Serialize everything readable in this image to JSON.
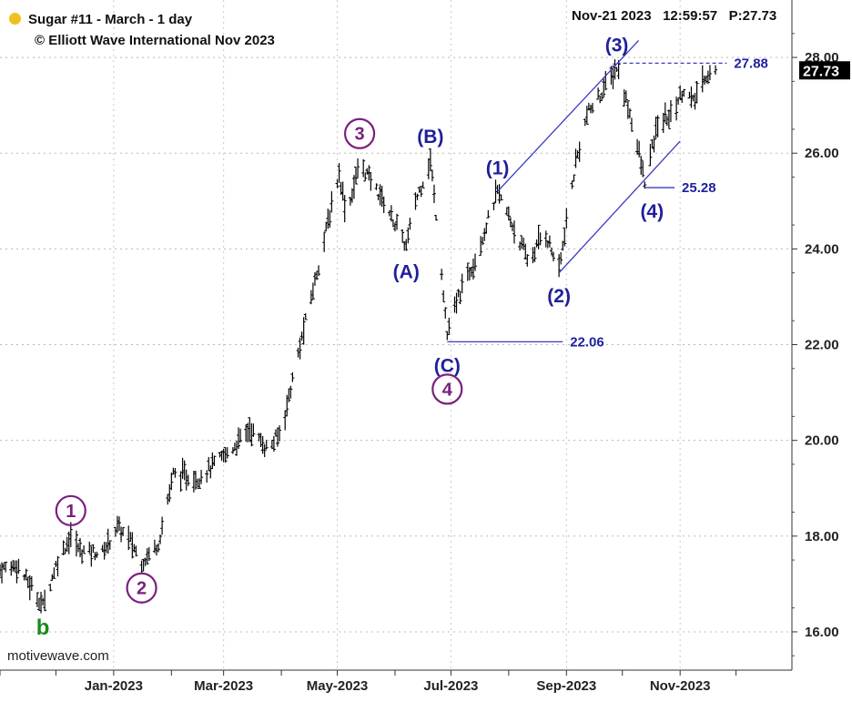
{
  "header": {
    "title": "Sugar #11 - March - 1 day",
    "copyright": "© Elliott Wave International Nov 2023",
    "date": "Nov-21 2023",
    "time": "12:59:57",
    "price_label": "P:27.73",
    "status_color": "#f0c020"
  },
  "watermark": "motivewave.com",
  "chart_data": {
    "type": "ohlc",
    "ylim": [
      15.2,
      29.2
    ],
    "y_ticks": [
      "28.00",
      "26.00",
      "24.00",
      "22.00",
      "20.00",
      "18.00",
      "16.00"
    ],
    "y_tick_values": [
      28,
      26,
      24,
      22,
      20,
      18,
      16
    ],
    "x_ticks": [
      "Jan-2023",
      "Mar-2023",
      "May-2023",
      "Jul-2023",
      "Sep-2023",
      "Nov-2023"
    ],
    "x_range": [
      "2022-11-01",
      "2023-12-31"
    ],
    "grid": true,
    "last_price": "27.73",
    "bar_color": "#000000",
    "anchors": [
      [
        "2022-11-01",
        17.3
      ],
      [
        "2022-11-10",
        17.4
      ],
      [
        "2022-11-20",
        16.8
      ],
      [
        "2022-11-24",
        16.55
      ],
      [
        "2022-12-02",
        17.5
      ],
      [
        "2022-12-09",
        18.0
      ],
      [
        "2022-12-14",
        17.7
      ],
      [
        "2022-12-26",
        17.65
      ],
      [
        "2023-01-03",
        18.2
      ],
      [
        "2023-01-10",
        17.9
      ],
      [
        "2023-01-16",
        17.45
      ],
      [
        "2023-01-25",
        17.85
      ],
      [
        "2023-02-02",
        19.3
      ],
      [
        "2023-02-15",
        19.2
      ],
      [
        "2023-03-05",
        19.8
      ],
      [
        "2023-03-15",
        20.25
      ],
      [
        "2023-03-25",
        19.8
      ],
      [
        "2023-04-01",
        20.2
      ],
      [
        "2023-04-10",
        21.8
      ],
      [
        "2023-04-20",
        23.5
      ],
      [
        "2023-05-02",
        25.6
      ],
      [
        "2023-05-06",
        24.7
      ],
      [
        "2023-05-13",
        25.8
      ],
      [
        "2023-05-26",
        25.0
      ],
      [
        "2023-06-07",
        24.05
      ],
      [
        "2023-06-12",
        25.0
      ],
      [
        "2023-06-20",
        25.85
      ],
      [
        "2023-06-25",
        24.0
      ],
      [
        "2023-06-29",
        22.2
      ],
      [
        "2023-07-05",
        23.0
      ],
      [
        "2023-07-15",
        23.9
      ],
      [
        "2023-07-26",
        25.2
      ],
      [
        "2023-08-03",
        24.5
      ],
      [
        "2023-08-12",
        23.7
      ],
      [
        "2023-08-20",
        24.4
      ],
      [
        "2023-08-28",
        23.55
      ],
      [
        "2023-09-06",
        25.8
      ],
      [
        "2023-09-12",
        26.8
      ],
      [
        "2023-09-19",
        27.2
      ],
      [
        "2023-09-28",
        27.8
      ],
      [
        "2023-10-06",
        26.7
      ],
      [
        "2023-10-13",
        25.4
      ],
      [
        "2023-10-20",
        26.6
      ],
      [
        "2023-10-27",
        26.8
      ],
      [
        "2023-11-03",
        27.35
      ],
      [
        "2023-11-08",
        27.05
      ],
      [
        "2023-11-14",
        27.6
      ],
      [
        "2023-11-21",
        27.73
      ]
    ],
    "wave_labels": [
      {
        "text": "1",
        "style": "circle-purple",
        "date": "2022-12-09",
        "price": 18.0
      },
      {
        "text": "2",
        "style": "circle-purple",
        "date": "2023-01-16",
        "price": 17.45
      },
      {
        "text": "b",
        "style": "green",
        "date": "2022-11-24",
        "price": 16.55
      },
      {
        "text": "3",
        "style": "circle-purple",
        "date": "2023-05-13",
        "price": 25.8
      },
      {
        "text": "(A)",
        "style": "blue",
        "date": "2023-06-07",
        "price": 24.05
      },
      {
        "text": "(B)",
        "style": "blue",
        "date": "2023-06-20",
        "price": 25.85
      },
      {
        "text": "(C)",
        "style": "blue",
        "date": "2023-06-29",
        "price": 22.06
      },
      {
        "text": "4",
        "style": "circle-purple",
        "date": "2023-06-29",
        "price": 22.06
      },
      {
        "text": "(1)",
        "style": "blue",
        "date": "2023-07-26",
        "price": 25.2
      },
      {
        "text": "(2)",
        "style": "blue",
        "date": "2023-08-28",
        "price": 23.55
      },
      {
        "text": "(3)",
        "style": "blue",
        "date": "2023-09-28",
        "price": 27.88
      },
      {
        "text": "(4)",
        "style": "blue",
        "date": "2023-10-13",
        "price": 25.28
      }
    ],
    "levels": [
      {
        "label": "27.88",
        "value": 27.88,
        "style": "dashed"
      },
      {
        "label": "25.28",
        "value": 25.28,
        "style": "solid"
      },
      {
        "label": "22.06",
        "value": 22.06,
        "style": "solid"
      }
    ],
    "channel_color": "#3a3ac0"
  }
}
